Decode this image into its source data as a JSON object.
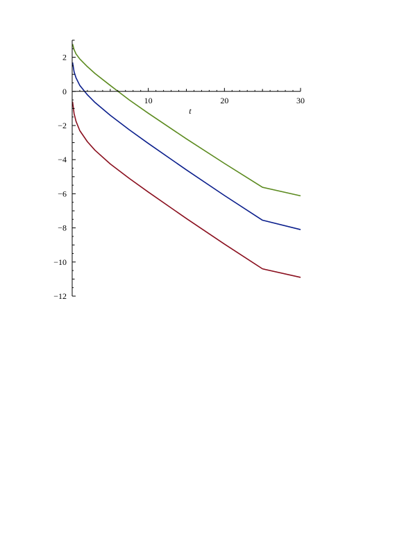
{
  "chart_data": {
    "type": "line",
    "xlabel": "t",
    "ylabel": "",
    "xlim": [
      0,
      30
    ],
    "ylim": [
      -12,
      3
    ],
    "x_ticks": [
      10,
      20,
      30
    ],
    "y_ticks": [
      2,
      0,
      -2,
      -4,
      -6,
      -8,
      -10,
      -12
    ],
    "grid": false,
    "series": [
      {
        "color": "#5b8a1e",
        "x": [
          0.05,
          0.25,
          0.5,
          1,
          2,
          3,
          5,
          7.5,
          10,
          15,
          20,
          25,
          30
        ],
        "y": [
          2.78,
          2.45,
          2.2,
          1.9,
          1.45,
          1.05,
          0.35,
          -0.5,
          -1.28,
          -2.78,
          -4.22,
          -5.62,
          -6.12
        ]
      },
      {
        "color": "#0a1e8c",
        "x": [
          0.05,
          0.25,
          0.5,
          1,
          2,
          3,
          5,
          7.5,
          10,
          15,
          20,
          25,
          30
        ],
        "y": [
          1.7,
          1.15,
          0.8,
          0.35,
          -0.2,
          -0.65,
          -1.4,
          -2.25,
          -3.05,
          -4.6,
          -6.1,
          -7.55,
          -8.1
        ]
      },
      {
        "color": "#8a0f1e",
        "x": [
          0.05,
          0.25,
          0.5,
          1,
          2,
          3,
          5,
          7.5,
          10,
          15,
          20,
          25,
          30
        ],
        "y": [
          -0.6,
          -1.3,
          -1.75,
          -2.3,
          -2.95,
          -3.45,
          -4.25,
          -5.1,
          -5.9,
          -7.45,
          -8.95,
          -10.4,
          -10.9
        ]
      }
    ]
  }
}
